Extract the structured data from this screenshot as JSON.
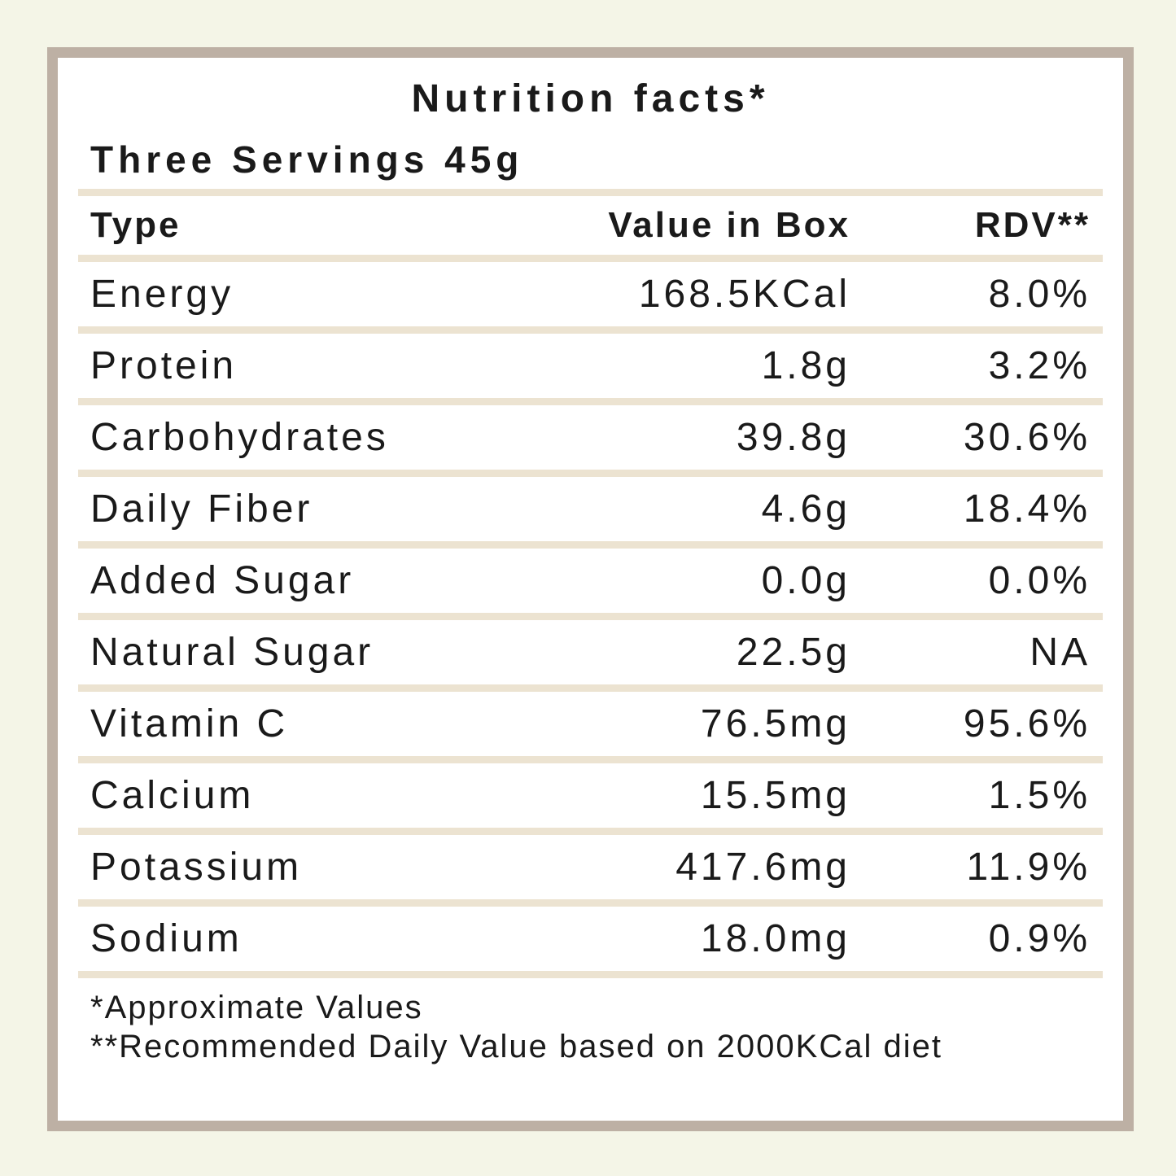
{
  "label": {
    "title": "Nutrition facts*",
    "serving": "Three Servings 45g",
    "columns": {
      "type": "Type",
      "value": "Value in Box",
      "rdv": "RDV**"
    },
    "rows": [
      {
        "type": "Energy",
        "value": "168.5KCal",
        "rdv": "8.0%"
      },
      {
        "type": "Protein",
        "value": "1.8g",
        "rdv": "3.2%"
      },
      {
        "type": "Carbohydrates",
        "value": "39.8g",
        "rdv": "30.6%"
      },
      {
        "type": "Daily Fiber",
        "value": "4.6g",
        "rdv": "18.4%"
      },
      {
        "type": "Added Sugar",
        "value": "0.0g",
        "rdv": "0.0%"
      },
      {
        "type": "Natural Sugar",
        "value": "22.5g",
        "rdv": "NA"
      },
      {
        "type": "Vitamin C",
        "value": "76.5mg",
        "rdv": "95.6%"
      },
      {
        "type": "Calcium",
        "value": "15.5mg",
        "rdv": "1.5%"
      },
      {
        "type": "Potassium",
        "value": "417.6mg",
        "rdv": "11.9%"
      },
      {
        "type": "Sodium",
        "value": "18.0mg",
        "rdv": "0.9%"
      }
    ],
    "footnotes": [
      "*Approximate Values",
      "**Recommended Daily Value based on 2000KCal diet"
    ],
    "colors": {
      "background": "#f4f5e7",
      "card": "#ffffff",
      "frame": "#bdb0a4",
      "divider": "#ece3d1",
      "text": "#1a1a1a"
    }
  }
}
